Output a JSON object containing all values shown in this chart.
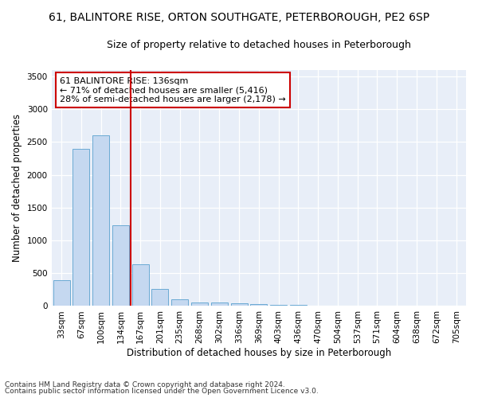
{
  "title1": "61, BALINTORE RISE, ORTON SOUTHGATE, PETERBOROUGH, PE2 6SP",
  "title2": "Size of property relative to detached houses in Peterborough",
  "xlabel": "Distribution of detached houses by size in Peterborough",
  "ylabel": "Number of detached properties",
  "footnote1": "Contains HM Land Registry data © Crown copyright and database right 2024.",
  "footnote2": "Contains public sector information licensed under the Open Government Licence v3.0.",
  "annotation_line1": "61 BALINTORE RISE: 136sqm",
  "annotation_line2": "← 71% of detached houses are smaller (5,416)",
  "annotation_line3": "28% of semi-detached houses are larger (2,178) →",
  "bar_color": "#c5d8f0",
  "bar_edge_color": "#6aaad4",
  "vline_color": "#cc0000",
  "annotation_box_edgecolor": "#cc0000",
  "background_color": "#e8eef8",
  "grid_color": "#ffffff",
  "categories": [
    "33sqm",
    "67sqm",
    "100sqm",
    "134sqm",
    "167sqm",
    "201sqm",
    "235sqm",
    "268sqm",
    "302sqm",
    "336sqm",
    "369sqm",
    "403sqm",
    "436sqm",
    "470sqm",
    "504sqm",
    "537sqm",
    "571sqm",
    "604sqm",
    "638sqm",
    "672sqm",
    "705sqm"
  ],
  "values": [
    390,
    2400,
    2600,
    1230,
    640,
    255,
    100,
    60,
    55,
    45,
    30,
    20,
    15,
    10,
    8,
    5,
    4,
    3,
    2,
    2,
    0
  ],
  "ylim": [
    0,
    3600
  ],
  "yticks": [
    0,
    500,
    1000,
    1500,
    2000,
    2500,
    3000,
    3500
  ],
  "vline_x": 3.5,
  "title1_fontsize": 10,
  "title2_fontsize": 9,
  "xlabel_fontsize": 8.5,
  "ylabel_fontsize": 8.5,
  "tick_fontsize": 7.5,
  "annot_fontsize": 8,
  "footnote_fontsize": 6.5
}
